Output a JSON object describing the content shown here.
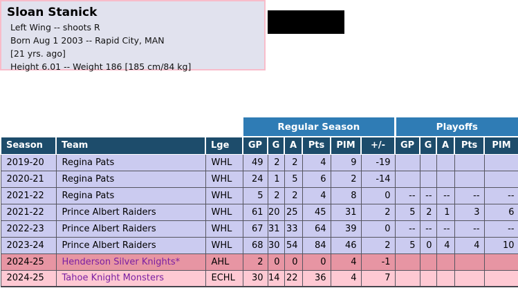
{
  "player": {
    "name": "Sloan Stanick",
    "details": [
      "Left Wing -- shoots R",
      "Born Aug 1 2003 -- Rapid City, MAN",
      "[21 yrs. ago]",
      "Height 6.01 -- Weight 186 [185 cm/84 kg]"
    ]
  },
  "table": {
    "group_headers": {
      "regular_season": "Regular Season",
      "playoffs": "Playoffs"
    },
    "columns": [
      "Season",
      "Team",
      "Lge",
      "GP",
      "G",
      "A",
      "Pts",
      "PIM",
      "+/-",
      "GP",
      "G",
      "A",
      "Pts",
      "PIM"
    ],
    "rows": [
      {
        "season": "2019-20",
        "team": "Regina Pats",
        "league": "WHL",
        "regular": [
          "49",
          "2",
          "2",
          "4",
          "9",
          "-19"
        ],
        "playoffs": [
          "",
          "",
          "",
          "",
          ""
        ],
        "variant": "lavender",
        "team_is_link": false
      },
      {
        "season": "2020-21",
        "team": "Regina Pats",
        "league": "WHL",
        "regular": [
          "24",
          "1",
          "5",
          "6",
          "2",
          "-14"
        ],
        "playoffs": [
          "",
          "",
          "",
          "",
          ""
        ],
        "variant": "lavender",
        "team_is_link": false
      },
      {
        "season": "2021-22",
        "team": "Regina Pats",
        "league": "WHL",
        "regular": [
          "5",
          "2",
          "2",
          "4",
          "8",
          "0"
        ],
        "playoffs": [
          "--",
          "--",
          "--",
          "--",
          "--"
        ],
        "variant": "lavender",
        "team_is_link": false
      },
      {
        "season": "2021-22",
        "team": "Prince Albert Raiders",
        "league": "WHL",
        "regular": [
          "61",
          "20",
          "25",
          "45",
          "31",
          "2"
        ],
        "playoffs": [
          "5",
          "2",
          "1",
          "3",
          "6"
        ],
        "variant": "lavender",
        "team_is_link": false
      },
      {
        "season": "2022-23",
        "team": "Prince Albert Raiders",
        "league": "WHL",
        "regular": [
          "67",
          "31",
          "33",
          "64",
          "39",
          "0"
        ],
        "playoffs": [
          "--",
          "--",
          "--",
          "--",
          "--"
        ],
        "variant": "lavender",
        "team_is_link": false
      },
      {
        "season": "2023-24",
        "team": "Prince Albert Raiders",
        "league": "WHL",
        "regular": [
          "68",
          "30",
          "54",
          "84",
          "46",
          "2"
        ],
        "playoffs": [
          "5",
          "0",
          "4",
          "4",
          "10"
        ],
        "variant": "lavender",
        "team_is_link": false
      },
      {
        "season": "2024-25",
        "team": "Henderson Silver Knights*",
        "league": "AHL",
        "regular": [
          "2",
          "0",
          "0",
          "0",
          "4",
          "-1"
        ],
        "playoffs": [
          "",
          "",
          "",
          "",
          ""
        ],
        "variant": "pink-dark",
        "team_is_link": true
      },
      {
        "season": "2024-25",
        "team": "Tahoe Knight Monsters",
        "league": "ECHL",
        "regular": [
          "30",
          "14",
          "22",
          "36",
          "4",
          "7"
        ],
        "playoffs": [
          "",
          "",
          "",
          "",
          ""
        ],
        "variant": "pink-light",
        "team_is_link": true
      }
    ]
  },
  "colors": {
    "band_blue": "#2f7cb5",
    "navy": "#1d4c6b",
    "row_lavender": "#cbcbf0",
    "row_pink_dark": "#e795a3",
    "row_pink_light": "#fec9d3",
    "grid_gray": "#55555f",
    "link_purple": "#7a1fa2",
    "info_bg": "#e1e2ee",
    "info_border": "#f8bcca"
  }
}
